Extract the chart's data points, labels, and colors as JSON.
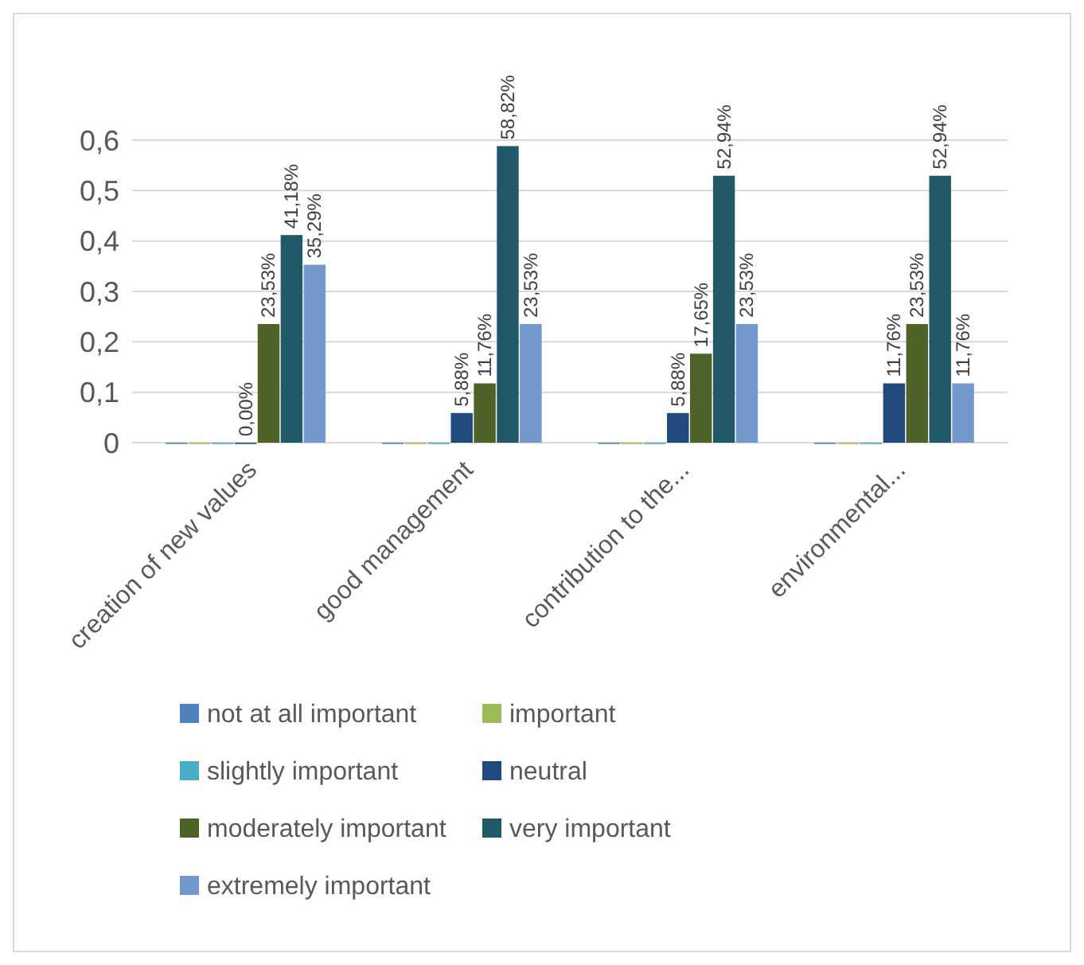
{
  "chart_data": {
    "type": "bar",
    "categories": [
      "creation of new values",
      "good management",
      "contribution to the...",
      "environmental..."
    ],
    "series": [
      {
        "name": "not at all important",
        "color": "#4f81bd",
        "values": [
          0,
          0,
          0,
          0
        ],
        "value_labels": [
          null,
          null,
          null,
          null
        ]
      },
      {
        "name": "important",
        "color": "#9bbb59",
        "values": [
          0,
          0,
          0,
          0
        ],
        "value_labels": [
          null,
          null,
          null,
          null
        ]
      },
      {
        "name": "slightly important",
        "color": "#4bacc6",
        "values": [
          0,
          0,
          0,
          0
        ],
        "value_labels": [
          null,
          null,
          null,
          null
        ]
      },
      {
        "name": "neutral",
        "color": "#1f497d",
        "values": [
          0,
          0.0588,
          0.0588,
          0.1176
        ],
        "value_labels": [
          "0,00%",
          "5,88%",
          "5,88%",
          "11,76%"
        ]
      },
      {
        "name": "moderately important",
        "color": "#4f6228",
        "values": [
          0.2353,
          0.1176,
          0.1765,
          0.2353
        ],
        "value_labels": [
          "23,53%",
          "11,76%",
          "17,65%",
          "23,53%"
        ]
      },
      {
        "name": "very important",
        "color": "#215968",
        "values": [
          0.4118,
          0.5882,
          0.5294,
          0.5294
        ],
        "value_labels": [
          "41,18%",
          "58,82%",
          "52,94%",
          "52,94%"
        ]
      },
      {
        "name": "extremely important",
        "color": "#7298cc",
        "values": [
          0.3529,
          0.2353,
          0.2353,
          0.1176
        ],
        "value_labels": [
          "35,29%",
          "23,53%",
          "23,53%",
          "11,76%"
        ]
      }
    ],
    "ylim": [
      0,
      0.6
    ],
    "yticks": [
      0,
      {
        "value": 0.1,
        "label": "0,1"
      },
      {
        "value": 0.2,
        "label": "0,2"
      },
      {
        "value": 0.3,
        "label": "0,3"
      },
      {
        "value": 0.4,
        "label": "0,4"
      },
      {
        "value": 0.5,
        "label": "0,5"
      },
      {
        "value": 0.6,
        "label": "0,6"
      }
    ],
    "grid": true,
    "legend": "bottom"
  }
}
